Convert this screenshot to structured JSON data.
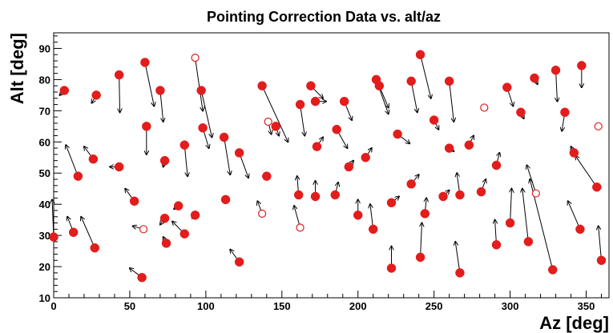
{
  "chart_data": {
    "type": "scatter",
    "title": "Pointing Correction Data vs. alt/az",
    "xlabel": "Az [deg]",
    "ylabel": "Alt [deg]",
    "xlim": [
      0,
      365
    ],
    "ylim": [
      10,
      95
    ],
    "x_ticks": [
      0,
      50,
      100,
      150,
      200,
      250,
      300,
      350
    ],
    "y_ticks": [
      10,
      20,
      30,
      40,
      50,
      60,
      70,
      80,
      90
    ],
    "grid": false,
    "legend": "none",
    "colors": {
      "point": "#e31c1c",
      "arrow": "#000000",
      "frame": "#000000"
    },
    "points": [
      {
        "az": 7,
        "alt": 76.5,
        "dx": -3,
        "dy": -1.5,
        "filled": true
      },
      {
        "az": 28,
        "alt": 75,
        "dx": -3,
        "dy": -2.5,
        "filled": true
      },
      {
        "az": 43,
        "alt": 81.5,
        "dx": 0.5,
        "dy": -12,
        "filled": true
      },
      {
        "az": 60,
        "alt": 85.5,
        "dx": 6,
        "dy": -14,
        "filled": true
      },
      {
        "az": 70,
        "alt": 76.5,
        "dx": 2,
        "dy": -10,
        "filled": true
      },
      {
        "az": 93,
        "alt": 87,
        "dx": 5,
        "dy": -17,
        "filled": false
      },
      {
        "az": 97,
        "alt": 76.5,
        "dx": 7,
        "dy": -15,
        "filled": true
      },
      {
        "az": 98,
        "alt": 64.5,
        "dx": 4,
        "dy": -6.5,
        "filled": true
      },
      {
        "az": 61,
        "alt": 65,
        "dx": 0,
        "dy": -9,
        "filled": true
      },
      {
        "az": 73,
        "alt": 54,
        "dx": -1,
        "dy": -2,
        "filled": true
      },
      {
        "az": 86,
        "alt": 59,
        "dx": 2,
        "dy": -10,
        "filled": true
      },
      {
        "az": 112,
        "alt": 61.5,
        "dx": 4,
        "dy": -12,
        "filled": true
      },
      {
        "az": 122,
        "alt": 56.5,
        "dx": 6,
        "dy": -8,
        "filled": true
      },
      {
        "az": 137,
        "alt": 78,
        "dx": 17,
        "dy": -18,
        "filled": true
      },
      {
        "az": 141,
        "alt": 66.5,
        "dx": 2,
        "dy": -4,
        "filled": false
      },
      {
        "az": 146,
        "alt": 65,
        "dx": 2,
        "dy": -3,
        "filled": true
      },
      {
        "az": 140,
        "alt": 49,
        "dx": -1,
        "dy": 1,
        "filled": true
      },
      {
        "az": 162,
        "alt": 72,
        "dx": 3,
        "dy": -10,
        "filled": true
      },
      {
        "az": 169,
        "alt": 78,
        "dx": 8,
        "dy": -4,
        "filled": true
      },
      {
        "az": 172,
        "alt": 73,
        "dx": 7,
        "dy": 0,
        "filled": true
      },
      {
        "az": 173,
        "alt": 58.5,
        "dx": 4,
        "dy": 3,
        "filled": true
      },
      {
        "az": 191,
        "alt": 73,
        "dx": 5,
        "dy": -6,
        "filled": true
      },
      {
        "az": 186,
        "alt": 64,
        "dx": 7,
        "dy": -6,
        "filled": true
      },
      {
        "az": 194,
        "alt": 52,
        "dx": 3,
        "dy": 2,
        "filled": true
      },
      {
        "az": 205,
        "alt": 55,
        "dx": 4,
        "dy": 3,
        "filled": true
      },
      {
        "az": 212,
        "alt": 80,
        "dx": 8,
        "dy": -11,
        "filled": true
      },
      {
        "az": 214,
        "alt": 78,
        "dx": 6,
        "dy": -7,
        "filled": true
      },
      {
        "az": 226,
        "alt": 62.5,
        "dx": 8,
        "dy": -3,
        "filled": true
      },
      {
        "az": 235,
        "alt": 79.5,
        "dx": 4,
        "dy": -10,
        "filled": true
      },
      {
        "az": 241,
        "alt": 88,
        "dx": 7,
        "dy": -14,
        "filled": true
      },
      {
        "az": 250,
        "alt": 67,
        "dx": 3,
        "dy": -3,
        "filled": true
      },
      {
        "az": 260,
        "alt": 79.5,
        "dx": 3,
        "dy": -13,
        "filled": true
      },
      {
        "az": 283,
        "alt": 71,
        "dx": -1,
        "dy": 0,
        "filled": false
      },
      {
        "az": 260,
        "alt": 58,
        "dx": 3,
        "dy": -1,
        "filled": true
      },
      {
        "az": 273,
        "alt": 59,
        "dx": 3,
        "dy": 3,
        "filled": true
      },
      {
        "az": 298,
        "alt": 77.5,
        "dx": 4,
        "dy": -6,
        "filled": true
      },
      {
        "az": 307,
        "alt": 69.5,
        "dx": 2,
        "dy": -2,
        "filled": true
      },
      {
        "az": 316,
        "alt": 80.5,
        "dx": 2,
        "dy": -2,
        "filled": true
      },
      {
        "az": 330,
        "alt": 83,
        "dx": 1,
        "dy": -10,
        "filled": true
      },
      {
        "az": 336,
        "alt": 69.5,
        "dx": -2,
        "dy": -6,
        "filled": true
      },
      {
        "az": 347,
        "alt": 84.5,
        "dx": 0,
        "dy": -7,
        "filled": true
      },
      {
        "az": 358,
        "alt": 65,
        "dx": -1,
        "dy": 0,
        "filled": false
      },
      {
        "az": 342,
        "alt": 56.5,
        "dx": -2,
        "dy": 2,
        "filled": true
      },
      {
        "az": 357,
        "alt": 45.5,
        "dx": -14,
        "dy": 10,
        "filled": true
      },
      {
        "az": 346,
        "alt": 32,
        "dx": -8,
        "dy": 9,
        "filled": true
      },
      {
        "az": 360,
        "alt": 22,
        "dx": -2,
        "dy": 11,
        "filled": true
      },
      {
        "az": 328,
        "alt": 19,
        "dx": -15,
        "dy": 29,
        "filled": true
      },
      {
        "az": 317,
        "alt": 43.5,
        "dx": -6,
        "dy": 9,
        "filled": false
      },
      {
        "az": 312,
        "alt": 28,
        "dx": -4,
        "dy": 17,
        "filled": true
      },
      {
        "az": 300,
        "alt": 34,
        "dx": 1,
        "dy": 11,
        "filled": true
      },
      {
        "az": 291,
        "alt": 27,
        "dx": -1,
        "dy": 8,
        "filled": true
      },
      {
        "az": 291,
        "alt": 52.5,
        "dx": 2,
        "dy": 4,
        "filled": true
      },
      {
        "az": 281,
        "alt": 44,
        "dx": 3,
        "dy": 4,
        "filled": true
      },
      {
        "az": 267,
        "alt": 43,
        "dx": -2,
        "dy": 7,
        "filled": true
      },
      {
        "az": 267,
        "alt": 18,
        "dx": -3,
        "dy": 10,
        "filled": true
      },
      {
        "az": 256,
        "alt": 42.5,
        "dx": 4,
        "dy": 2,
        "filled": true
      },
      {
        "az": 244,
        "alt": 37,
        "dx": 1,
        "dy": 5,
        "filled": true
      },
      {
        "az": 241,
        "alt": 23,
        "dx": 1,
        "dy": 11,
        "filled": true
      },
      {
        "az": 235,
        "alt": 46.5,
        "dx": 5,
        "dy": 3,
        "filled": true
      },
      {
        "az": 222,
        "alt": 40.5,
        "dx": 5,
        "dy": 2,
        "filled": true
      },
      {
        "az": 222,
        "alt": 19.5,
        "dx": 0,
        "dy": 7,
        "filled": true
      },
      {
        "az": 210,
        "alt": 32,
        "dx": -2,
        "dy": 8,
        "filled": true
      },
      {
        "az": 200,
        "alt": 36.5,
        "dx": 0,
        "dy": 5,
        "filled": true
      },
      {
        "az": 185,
        "alt": 43,
        "dx": 2,
        "dy": 4,
        "filled": true
      },
      {
        "az": 172,
        "alt": 42.5,
        "dx": 0,
        "dy": 5,
        "filled": true
      },
      {
        "az": 161,
        "alt": 43,
        "dx": -1,
        "dy": 6,
        "filled": true
      },
      {
        "az": 162,
        "alt": 32.5,
        "dx": -4,
        "dy": 7,
        "filled": false
      },
      {
        "az": 137,
        "alt": 37,
        "dx": -3,
        "dy": 4,
        "filled": false
      },
      {
        "az": 122,
        "alt": 21.5,
        "dx": -6,
        "dy": 4,
        "filled": true
      },
      {
        "az": 113,
        "alt": 41.5,
        "dx": -2,
        "dy": 0,
        "filled": true
      },
      {
        "az": 93,
        "alt": 36.5,
        "dx": -2,
        "dy": -1,
        "filled": true
      },
      {
        "az": 82,
        "alt": 39.5,
        "dx": -3,
        "dy": -1,
        "filled": true
      },
      {
        "az": 73,
        "alt": 35.5,
        "dx": -3,
        "dy": -2,
        "filled": true
      },
      {
        "az": 74,
        "alt": 27.5,
        "dx": -2,
        "dy": 2,
        "filled": true
      },
      {
        "az": 86,
        "alt": 30.5,
        "dx": -8,
        "dy": 4,
        "filled": true
      },
      {
        "az": 59,
        "alt": 32,
        "dx": -7,
        "dy": 1,
        "filled": false
      },
      {
        "az": 53,
        "alt": 41,
        "dx": -6,
        "dy": 4,
        "filled": true
      },
      {
        "az": 43,
        "alt": 52,
        "dx": -6,
        "dy": 0,
        "filled": true
      },
      {
        "az": 58,
        "alt": 16.5,
        "dx": -8,
        "dy": 3,
        "filled": true
      },
      {
        "az": 27,
        "alt": 26,
        "dx": -9,
        "dy": 10,
        "filled": true
      },
      {
        "az": 13,
        "alt": 31,
        "dx": -4,
        "dy": 5,
        "filled": true
      },
      {
        "az": 0,
        "alt": 29.5,
        "dx": -1,
        "dy": 12,
        "filled": true
      },
      {
        "az": 16,
        "alt": 49,
        "dx": -8,
        "dy": 10,
        "filled": true
      },
      {
        "az": 26,
        "alt": 54.5,
        "dx": -6,
        "dy": 4,
        "filled": true
      }
    ]
  }
}
